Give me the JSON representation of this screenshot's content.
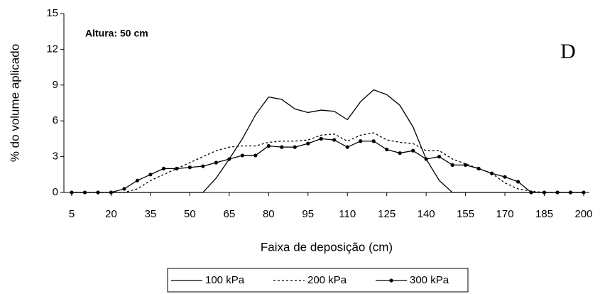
{
  "chart_data": {
    "type": "line",
    "annotation": "Altura: 50 cm",
    "panel_label": "D",
    "x_label": "Faixa de deposição (cm)",
    "y_label": "% do volume aplicado",
    "x": [
      5,
      10,
      15,
      20,
      25,
      30,
      35,
      40,
      45,
      50,
      55,
      60,
      65,
      70,
      75,
      80,
      85,
      90,
      95,
      100,
      105,
      110,
      115,
      120,
      125,
      130,
      135,
      140,
      145,
      150,
      155,
      160,
      165,
      170,
      175,
      180,
      185,
      190,
      195,
      200
    ],
    "series": [
      {
        "name": "100 kPa",
        "color": "#000000",
        "style": "solid",
        "marker": false,
        "values": [
          0,
          0,
          0,
          0,
          0,
          0,
          0,
          0,
          0,
          0,
          0,
          1.2,
          2.8,
          4.5,
          6.5,
          8.0,
          7.8,
          7.0,
          6.7,
          6.9,
          6.8,
          6.1,
          7.6,
          8.6,
          8.2,
          7.3,
          5.5,
          2.8,
          1.0,
          0,
          0,
          0,
          0,
          0,
          0,
          0,
          0,
          0,
          0,
          0
        ]
      },
      {
        "name": "200 kPa",
        "color": "#000000",
        "style": "dashed",
        "marker": false,
        "values": [
          0,
          0,
          0,
          0,
          0,
          0.3,
          1.0,
          1.5,
          2.0,
          2.5,
          3.0,
          3.5,
          3.8,
          3.9,
          3.9,
          4.2,
          4.3,
          4.3,
          4.4,
          4.8,
          4.9,
          4.3,
          4.8,
          5.0,
          4.4,
          4.2,
          4.1,
          3.5,
          3.5,
          2.8,
          2.4,
          2.0,
          1.6,
          0.8,
          0.3,
          0.1,
          0,
          0,
          0,
          0
        ]
      },
      {
        "name": "300 kPa",
        "color": "#000000",
        "style": "solid",
        "marker": true,
        "values": [
          0,
          0,
          0,
          0,
          0.3,
          1.0,
          1.5,
          2.0,
          2.0,
          2.1,
          2.2,
          2.5,
          2.8,
          3.1,
          3.1,
          3.9,
          3.8,
          3.8,
          4.1,
          4.5,
          4.4,
          3.8,
          4.3,
          4.3,
          3.6,
          3.3,
          3.5,
          2.8,
          3.0,
          2.3,
          2.3,
          2.0,
          1.6,
          1.3,
          0.9,
          0,
          0,
          0,
          0,
          0
        ]
      }
    ],
    "xlim": [
      5,
      200
    ],
    "xticks": [
      5,
      20,
      35,
      50,
      65,
      80,
      95,
      110,
      125,
      140,
      155,
      170,
      185,
      200
    ],
    "ylim": [
      0,
      15
    ],
    "yticks": [
      0,
      3,
      6,
      9,
      12,
      15
    ],
    "grid": false
  }
}
